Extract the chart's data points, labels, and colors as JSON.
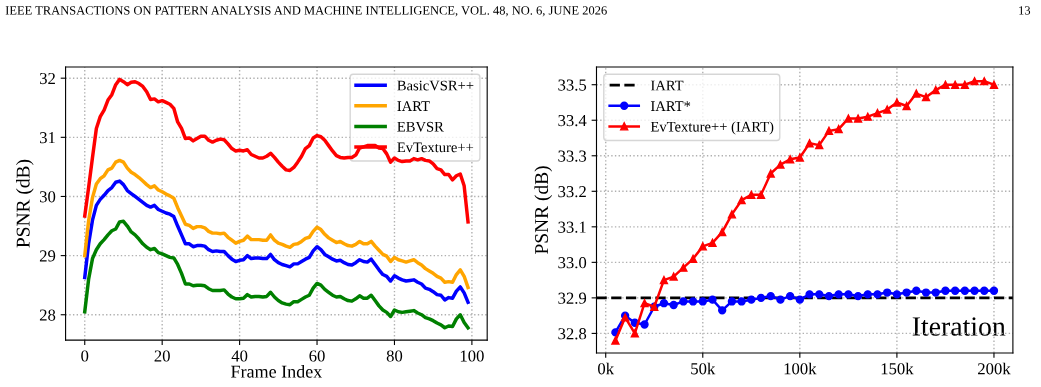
{
  "chart_data": [
    {
      "type": "line",
      "xlabel": "Frame Index",
      "ylabel": "PSNR (dB)",
      "annotations": [
        "IEEE TRANSACTIONS ON PATTERN ANALYSIS AND MACHINE INTELLIGENCE, VOL. 48, NO. 6, JUNE 2026",
        "13"
      ],
      "x": [
        0,
        1,
        2,
        3,
        4,
        5,
        6,
        7,
        8,
        9,
        10,
        11,
        12,
        13,
        14,
        15,
        16,
        17,
        18,
        19,
        20,
        21,
        22,
        23,
        24,
        25,
        26,
        27,
        28,
        29,
        30,
        31,
        32,
        33,
        34,
        35,
        36,
        37,
        38,
        39,
        40,
        41,
        42,
        43,
        44,
        45,
        46,
        47,
        48,
        49,
        50,
        51,
        52,
        53,
        54,
        55,
        56,
        57,
        58,
        59,
        60,
        61,
        62,
        63,
        64,
        65,
        66,
        67,
        68,
        69,
        70,
        71,
        72,
        73,
        74,
        75,
        76,
        77,
        78,
        79,
        80,
        81,
        82,
        83,
        84,
        85,
        86,
        87,
        88,
        89,
        90,
        91,
        92,
        93,
        94,
        95,
        96,
        97,
        98,
        99
      ],
      "xlim": [
        -4.95,
        103.95
      ],
      "xticks": [
        0,
        20,
        40,
        60,
        80,
        100
      ],
      "ylim": [
        27.57,
        32.19
      ],
      "yticks": [
        28,
        29,
        30,
        31,
        32
      ],
      "grid": true,
      "legend": "top right",
      "line_style": "solid",
      "series": [
        {
          "name": "BasicVSR++",
          "color": "#0000ff",
          "values": [
            28.63,
            29.2,
            29.6,
            29.85,
            29.95,
            30.02,
            30.1,
            30.15,
            30.24,
            30.26,
            30.2,
            30.1,
            30.05,
            30.0,
            29.95,
            29.9,
            29.85,
            29.82,
            29.85,
            29.78,
            29.75,
            29.72,
            29.7,
            29.66,
            29.5,
            29.35,
            29.2,
            29.2,
            29.15,
            29.17,
            29.17,
            29.16,
            29.1,
            29.07,
            29.08,
            29.07,
            29.07,
            29.0,
            28.94,
            28.9,
            28.92,
            28.93,
            29.0,
            28.95,
            28.96,
            28.96,
            28.95,
            28.95,
            29.02,
            28.93,
            28.88,
            28.85,
            28.83,
            28.81,
            28.86,
            28.86,
            28.9,
            28.94,
            28.97,
            29.08,
            29.15,
            29.1,
            29.02,
            28.98,
            28.94,
            28.91,
            28.92,
            28.88,
            28.85,
            28.84,
            28.88,
            28.93,
            28.9,
            28.89,
            28.94,
            28.85,
            28.76,
            28.68,
            28.65,
            28.57,
            28.66,
            28.62,
            28.59,
            28.57,
            28.58,
            28.59,
            28.55,
            28.52,
            28.45,
            28.43,
            28.39,
            28.34,
            28.33,
            28.25,
            28.29,
            28.28,
            28.4,
            28.47,
            28.37,
            28.21
          ]
        },
        {
          "name": "IART",
          "color": "#ffa500",
          "values": [
            29.0,
            29.59,
            29.98,
            30.21,
            30.3,
            30.35,
            30.45,
            30.48,
            30.58,
            30.61,
            30.58,
            30.48,
            30.41,
            30.37,
            30.32,
            30.26,
            30.2,
            30.15,
            30.18,
            30.11,
            30.08,
            30.04,
            30.01,
            29.97,
            29.81,
            29.67,
            29.53,
            29.51,
            29.46,
            29.49,
            29.49,
            29.47,
            29.41,
            29.38,
            29.38,
            29.37,
            29.38,
            29.31,
            29.26,
            29.21,
            29.24,
            29.26,
            29.33,
            29.27,
            29.27,
            29.27,
            29.26,
            29.26,
            29.35,
            29.26,
            29.21,
            29.19,
            29.16,
            29.14,
            29.19,
            29.2,
            29.24,
            29.29,
            29.31,
            29.41,
            29.48,
            29.44,
            29.36,
            29.3,
            29.26,
            29.22,
            29.24,
            29.2,
            29.17,
            29.16,
            29.19,
            29.24,
            29.2,
            29.2,
            29.24,
            29.16,
            29.09,
            29.02,
            28.99,
            28.9,
            28.97,
            28.93,
            28.91,
            28.89,
            28.91,
            28.93,
            28.88,
            28.84,
            28.78,
            28.74,
            28.7,
            28.65,
            28.62,
            28.55,
            28.56,
            28.55,
            28.68,
            28.76,
            28.65,
            28.46
          ]
        },
        {
          "name": "EBVSR",
          "color": "#008000",
          "values": [
            28.05,
            28.6,
            28.95,
            29.1,
            29.2,
            29.27,
            29.35,
            29.42,
            29.45,
            29.57,
            29.58,
            29.5,
            29.4,
            29.35,
            29.28,
            29.2,
            29.14,
            29.1,
            29.12,
            29.05,
            29.03,
            29.0,
            28.97,
            28.96,
            28.85,
            28.7,
            28.52,
            28.52,
            28.49,
            28.5,
            28.5,
            28.49,
            28.44,
            28.41,
            28.41,
            28.41,
            28.42,
            28.35,
            28.3,
            28.27,
            28.27,
            28.28,
            28.34,
            28.3,
            28.31,
            28.31,
            28.3,
            28.31,
            28.38,
            28.3,
            28.24,
            28.2,
            28.18,
            28.17,
            28.22,
            28.22,
            28.26,
            28.3,
            28.33,
            28.45,
            28.53,
            28.5,
            28.43,
            28.38,
            28.33,
            28.3,
            28.31,
            28.27,
            28.24,
            28.23,
            28.27,
            28.32,
            28.28,
            28.28,
            28.33,
            28.24,
            28.15,
            28.08,
            28.04,
            27.97,
            28.08,
            28.05,
            28.04,
            28.05,
            28.06,
            28.07,
            28.03,
            28.0,
            27.95,
            27.93,
            27.9,
            27.86,
            27.83,
            27.78,
            27.81,
            27.8,
            27.93,
            28.0,
            27.87,
            27.78
          ]
        },
        {
          "name": "EvTexture++",
          "color": "#ff0000",
          "values": [
            29.67,
            30.15,
            30.66,
            31.15,
            31.35,
            31.46,
            31.63,
            31.72,
            31.89,
            31.98,
            31.94,
            31.89,
            31.93,
            31.94,
            31.91,
            31.86,
            31.77,
            31.64,
            31.65,
            31.6,
            31.62,
            31.59,
            31.56,
            31.49,
            31.26,
            31.15,
            30.98,
            30.99,
            30.94,
            30.98,
            31.02,
            31.02,
            30.95,
            30.92,
            30.95,
            30.97,
            30.96,
            30.89,
            30.81,
            30.77,
            30.78,
            30.77,
            30.79,
            30.71,
            30.68,
            30.65,
            30.65,
            30.68,
            30.73,
            30.66,
            30.58,
            30.51,
            30.45,
            30.44,
            30.49,
            30.58,
            30.68,
            30.81,
            30.86,
            30.99,
            31.03,
            31.01,
            30.95,
            30.86,
            30.77,
            30.69,
            30.66,
            30.65,
            30.66,
            30.66,
            30.7,
            30.82,
            30.84,
            30.86,
            30.86,
            30.86,
            30.82,
            30.81,
            30.72,
            30.58,
            30.65,
            30.61,
            30.59,
            30.6,
            30.6,
            30.64,
            30.62,
            30.64,
            30.61,
            30.6,
            30.55,
            30.47,
            30.45,
            30.37,
            30.37,
            30.28,
            30.35,
            30.38,
            30.18,
            29.57
          ]
        }
      ]
    },
    {
      "type": "line",
      "xlabel": "Iteration",
      "ylabel": "PSNR (dB)",
      "x": [
        5,
        10,
        15,
        20,
        25,
        30,
        35,
        40,
        45,
        50,
        55,
        60,
        65,
        70,
        75,
        80,
        85,
        90,
        95,
        100,
        105,
        110,
        115,
        120,
        125,
        130,
        135,
        140,
        145,
        150,
        155,
        160,
        165,
        170,
        175,
        180,
        185,
        190,
        195,
        200
      ],
      "xlim": [
        -4.75,
        209.75
      ],
      "xticks": [
        {
          "value": 0,
          "label": "0k"
        },
        {
          "value": 50,
          "label": "50k"
        },
        {
          "value": 100,
          "label": "100k"
        },
        {
          "value": 150,
          "label": "150k"
        },
        {
          "value": 200,
          "label": "200k"
        }
      ],
      "ylim": [
        32.745,
        33.55
      ],
      "yticks": [
        {
          "value": 32.8,
          "label": "32.8"
        },
        {
          "value": 32.9,
          "label": "32.9"
        },
        {
          "value": 33.0,
          "label": "33.0"
        },
        {
          "value": 33.1,
          "label": "33.1"
        },
        {
          "value": 33.2,
          "label": "33.2"
        },
        {
          "value": 33.3,
          "label": "33.3"
        },
        {
          "value": 33.4,
          "label": "33.4"
        },
        {
          "value": 33.5,
          "label": "33.5"
        }
      ],
      "grid": true,
      "legend": "top left",
      "line_style": "solid",
      "ref_lines": [
        {
          "axis": "y",
          "value": 32.9,
          "label": "IART",
          "color": "#000000",
          "line_style": "dashed"
        }
      ],
      "series": [
        {
          "name": "IART*",
          "color": "#0000ff",
          "marker": "circle",
          "values": [
            32.803,
            32.85,
            32.83,
            32.825,
            32.875,
            32.885,
            32.88,
            32.89,
            32.89,
            32.89,
            32.895,
            32.865,
            32.89,
            32.89,
            32.895,
            32.9,
            32.905,
            32.895,
            32.905,
            32.895,
            32.91,
            32.91,
            32.905,
            32.91,
            32.91,
            32.905,
            32.91,
            32.91,
            32.915,
            32.91,
            32.915,
            32.92,
            32.915,
            32.915,
            32.92,
            32.92,
            32.92,
            32.92,
            32.92,
            32.92
          ]
        },
        {
          "name": "EvTexture++ (IART)",
          "color": "#ff0000",
          "marker": "triangle",
          "values": [
            32.78,
            32.845,
            32.8,
            32.885,
            32.875,
            32.95,
            32.96,
            32.985,
            33.01,
            33.045,
            33.055,
            33.085,
            33.135,
            33.175,
            33.19,
            33.19,
            33.25,
            33.275,
            33.29,
            33.295,
            33.335,
            33.33,
            33.37,
            33.375,
            33.405,
            33.405,
            33.41,
            33.42,
            33.43,
            33.45,
            33.44,
            33.475,
            33.465,
            33.485,
            33.5,
            33.5,
            33.5,
            33.51,
            33.51,
            33.5
          ]
        }
      ]
    }
  ]
}
